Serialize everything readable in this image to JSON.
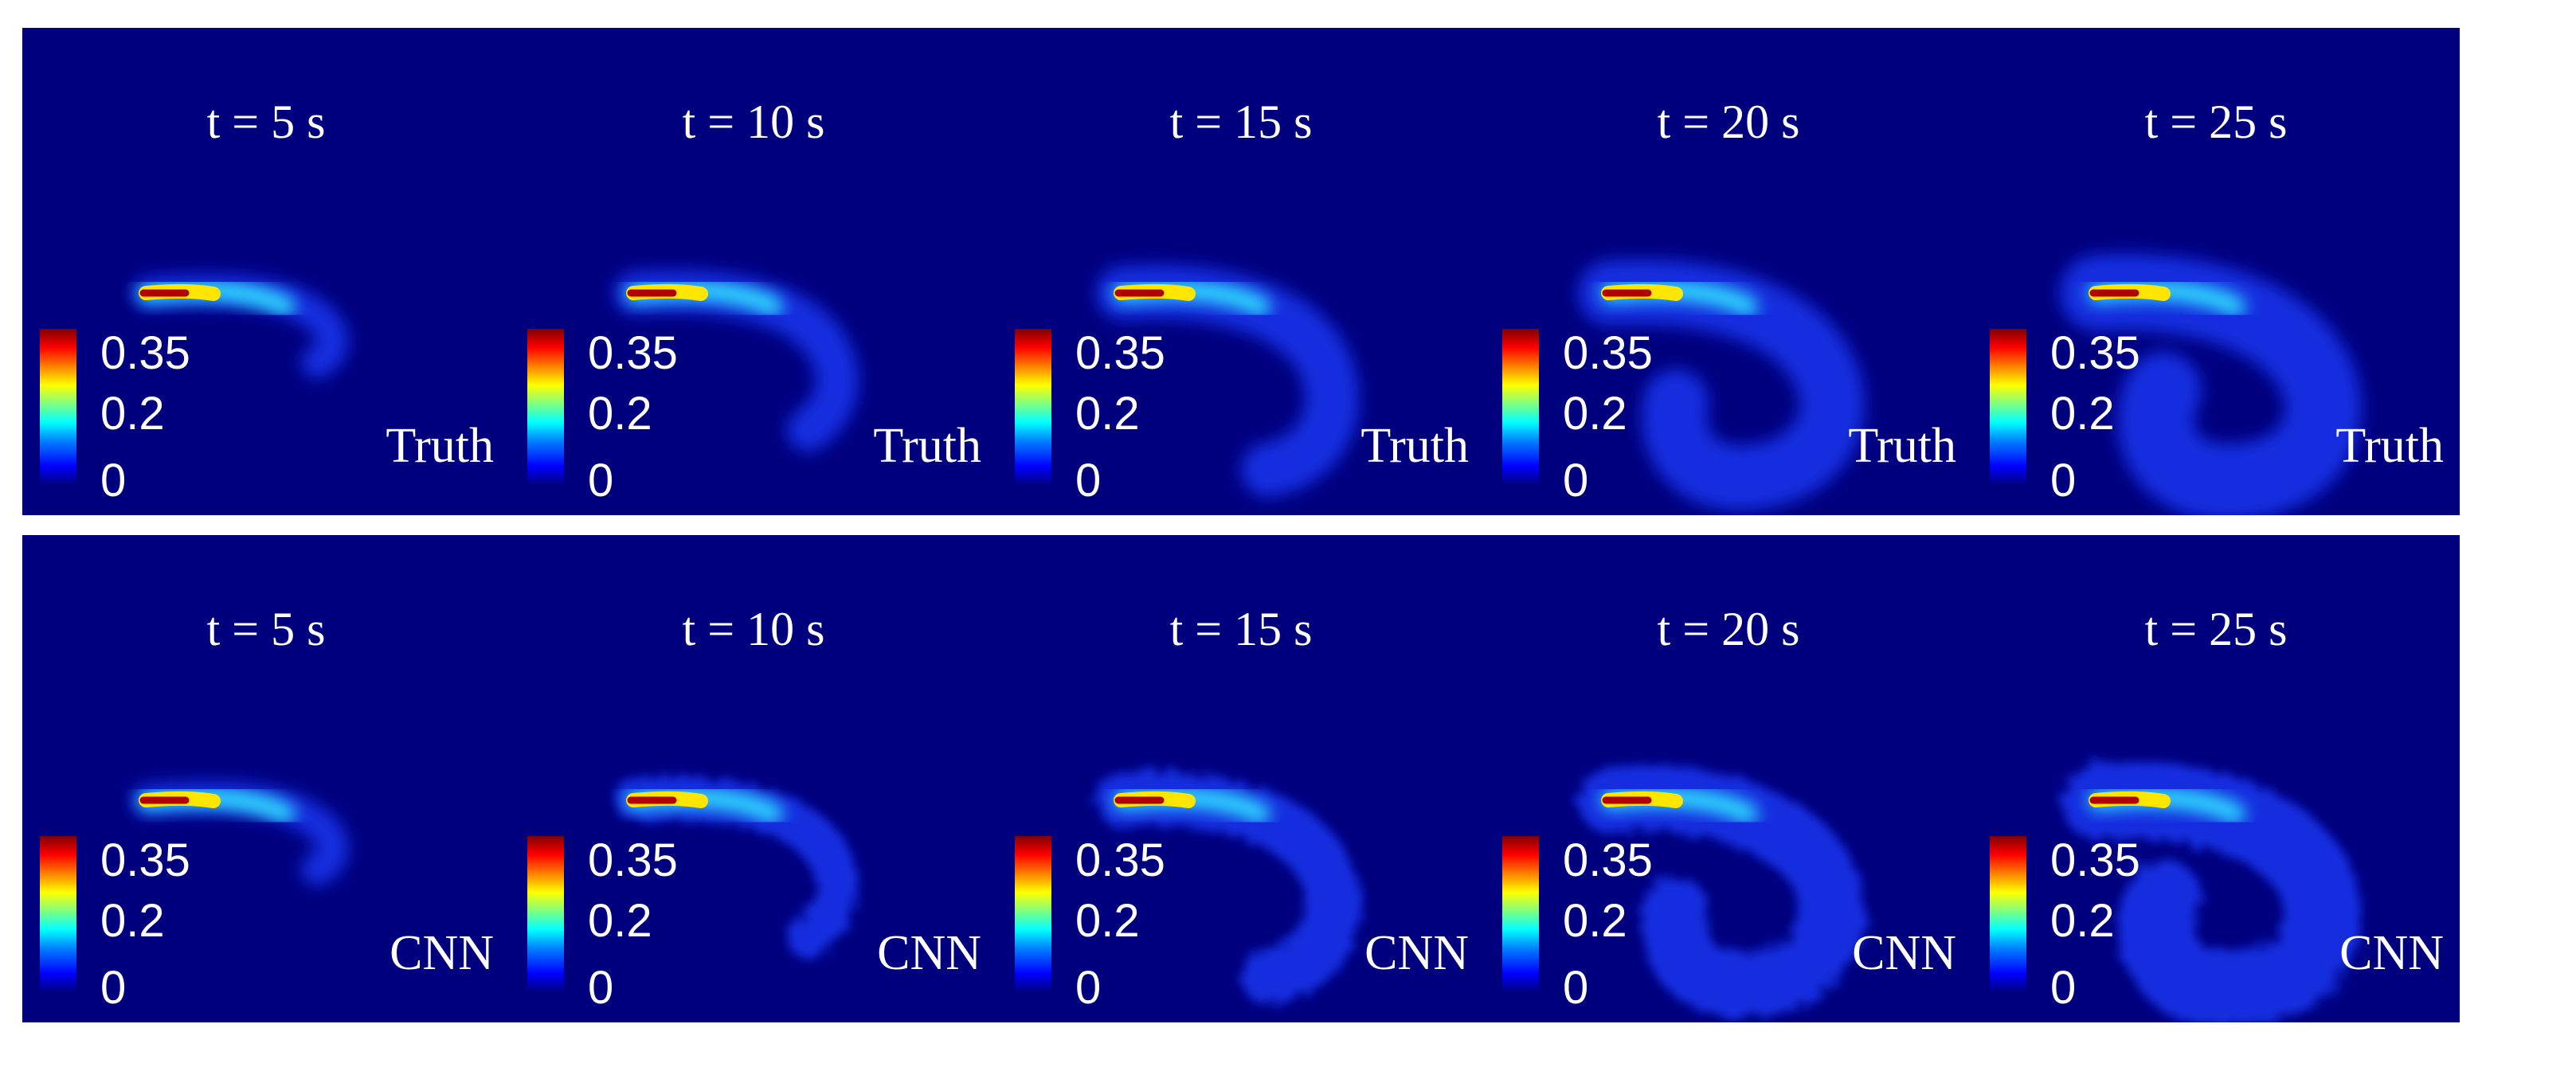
{
  "figure": {
    "colorbar": {
      "max": "0.35",
      "mid": "0.2",
      "min": "0",
      "colormap": "jet"
    },
    "rows": [
      {
        "model": "Truth",
        "panels": [
          {
            "time": "t = 5 s"
          },
          {
            "time": "t = 10 s"
          },
          {
            "time": "t = 15 s"
          },
          {
            "time": "t = 20 s"
          },
          {
            "time": "t = 25 s"
          }
        ]
      },
      {
        "model": "CNN",
        "panels": [
          {
            "time": "t = 5 s"
          },
          {
            "time": "t = 10 s"
          },
          {
            "time": "t = 15 s"
          },
          {
            "time": "t = 20 s"
          },
          {
            "time": "t = 25 s"
          }
        ]
      }
    ],
    "colors": {
      "background": "#00007f",
      "text": "#ffffff",
      "plume_core": "#b00000"
    }
  }
}
